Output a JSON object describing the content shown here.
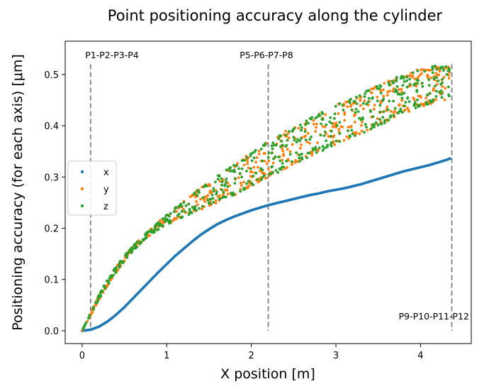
{
  "chart_data": {
    "type": "scatter",
    "title": "Point positioning accuracy along the cylinder",
    "xlabel": "X position [m]",
    "ylabel": "Positioning accuracy (for each axis) [μm]",
    "xlim": [
      -0.2,
      4.6
    ],
    "ylim": [
      -0.025,
      0.565
    ],
    "x_ticks": [
      0,
      1,
      2,
      3,
      4
    ],
    "y_ticks": [
      0.0,
      0.1,
      0.2,
      0.3,
      0.4,
      0.5
    ],
    "x_tick_labels": [
      "0",
      "1",
      "2",
      "3",
      "4"
    ],
    "y_tick_labels": [
      "0.0",
      "0.1",
      "0.2",
      "0.3",
      "0.4",
      "0.5"
    ],
    "grid": false,
    "legend_position": "center-left",
    "series": [
      {
        "name": "x",
        "color": "#1f77b4",
        "x": [
          0.0,
          0.1,
          0.2,
          0.3,
          0.4,
          0.5,
          0.6,
          0.7,
          0.8,
          0.9,
          1.0,
          1.1,
          1.2,
          1.3,
          1.4,
          1.5,
          1.6,
          1.7,
          1.8,
          1.9,
          2.0,
          2.1,
          2.2,
          2.3,
          2.4,
          2.5,
          2.6,
          2.7,
          2.8,
          2.9,
          3.0,
          3.1,
          3.2,
          3.3,
          3.4,
          3.5,
          3.6,
          3.7,
          3.8,
          3.9,
          4.0,
          4.1,
          4.2,
          4.3,
          4.35
        ],
        "y": [
          0.0,
          0.002,
          0.008,
          0.018,
          0.031,
          0.046,
          0.063,
          0.08,
          0.097,
          0.114,
          0.13,
          0.146,
          0.16,
          0.174,
          0.187,
          0.198,
          0.208,
          0.216,
          0.223,
          0.229,
          0.235,
          0.24,
          0.245,
          0.249,
          0.253,
          0.257,
          0.261,
          0.265,
          0.268,
          0.272,
          0.275,
          0.278,
          0.282,
          0.286,
          0.291,
          0.296,
          0.301,
          0.306,
          0.311,
          0.315,
          0.319,
          0.323,
          0.328,
          0.333,
          0.336
        ]
      },
      {
        "name": "y",
        "color": "#ff7f0e",
        "x": [
          0.0,
          0.1,
          0.2,
          0.3,
          0.4,
          0.5,
          0.6,
          0.7,
          0.8,
          0.9,
          1.0,
          1.1,
          1.2,
          1.3,
          1.4,
          1.5,
          1.6,
          1.7,
          1.8,
          1.9,
          2.0,
          2.1,
          2.2,
          2.3,
          2.4,
          2.5,
          2.6,
          2.7,
          2.8,
          2.9,
          3.0,
          3.1,
          3.2,
          3.3,
          3.4,
          3.5,
          3.6,
          3.7,
          3.8,
          3.9,
          4.0,
          4.1,
          4.2,
          4.3,
          4.35
        ],
        "y_low": [
          0.0,
          0.03,
          0.06,
          0.088,
          0.113,
          0.135,
          0.155,
          0.172,
          0.186,
          0.197,
          0.207,
          0.215,
          0.222,
          0.229,
          0.236,
          0.243,
          0.25,
          0.257,
          0.265,
          0.273,
          0.282,
          0.29,
          0.299,
          0.307,
          0.316,
          0.324,
          0.332,
          0.34,
          0.348,
          0.355,
          0.363,
          0.37,
          0.377,
          0.384,
          0.391,
          0.399,
          0.407,
          0.415,
          0.423,
          0.43,
          0.436,
          0.441,
          0.446,
          0.451,
          0.454
        ],
        "y_high": [
          0.0,
          0.035,
          0.07,
          0.1,
          0.125,
          0.147,
          0.165,
          0.182,
          0.197,
          0.212,
          0.226,
          0.24,
          0.253,
          0.266,
          0.279,
          0.291,
          0.303,
          0.315,
          0.326,
          0.337,
          0.348,
          0.359,
          0.369,
          0.379,
          0.389,
          0.398,
          0.407,
          0.416,
          0.424,
          0.432,
          0.44,
          0.448,
          0.456,
          0.464,
          0.471,
          0.479,
          0.486,
          0.493,
          0.5,
          0.506,
          0.511,
          0.515,
          0.518,
          0.52,
          0.52
        ]
      },
      {
        "name": "z",
        "color": "#2ca02c",
        "x": [
          0.0,
          0.1,
          0.2,
          0.3,
          0.4,
          0.5,
          0.6,
          0.7,
          0.8,
          0.9,
          1.0,
          1.1,
          1.2,
          1.3,
          1.4,
          1.5,
          1.6,
          1.7,
          1.8,
          1.9,
          2.0,
          2.1,
          2.2,
          2.3,
          2.4,
          2.5,
          2.6,
          2.7,
          2.8,
          2.9,
          3.0,
          3.1,
          3.2,
          3.3,
          3.4,
          3.5,
          3.6,
          3.7,
          3.8,
          3.9,
          4.0,
          4.1,
          4.2,
          4.3,
          4.35
        ],
        "y_low": [
          0.0,
          0.03,
          0.06,
          0.088,
          0.113,
          0.135,
          0.155,
          0.172,
          0.186,
          0.197,
          0.207,
          0.215,
          0.222,
          0.229,
          0.236,
          0.243,
          0.25,
          0.257,
          0.265,
          0.273,
          0.282,
          0.29,
          0.299,
          0.307,
          0.316,
          0.324,
          0.332,
          0.34,
          0.348,
          0.355,
          0.363,
          0.37,
          0.377,
          0.384,
          0.391,
          0.399,
          0.407,
          0.415,
          0.423,
          0.43,
          0.436,
          0.441,
          0.446,
          0.451,
          0.454
        ],
        "y_high": [
          0.0,
          0.035,
          0.07,
          0.1,
          0.125,
          0.147,
          0.165,
          0.182,
          0.197,
          0.212,
          0.226,
          0.24,
          0.253,
          0.266,
          0.279,
          0.291,
          0.303,
          0.315,
          0.326,
          0.337,
          0.348,
          0.359,
          0.369,
          0.379,
          0.389,
          0.398,
          0.407,
          0.416,
          0.424,
          0.432,
          0.44,
          0.448,
          0.456,
          0.464,
          0.471,
          0.479,
          0.486,
          0.493,
          0.5,
          0.506,
          0.511,
          0.515,
          0.518,
          0.52,
          0.52
        ]
      }
    ],
    "vertical_lines": [
      {
        "x": 0.1,
        "label": "P1-P2-P3-P4",
        "label_position": "top"
      },
      {
        "x": 2.2,
        "label": "P5-P6-P7-P8",
        "label_position": "top"
      },
      {
        "x": 4.37,
        "label": "P9-P10-P11-P12",
        "label_position": "bottom"
      }
    ],
    "vline_color": "#808080"
  }
}
